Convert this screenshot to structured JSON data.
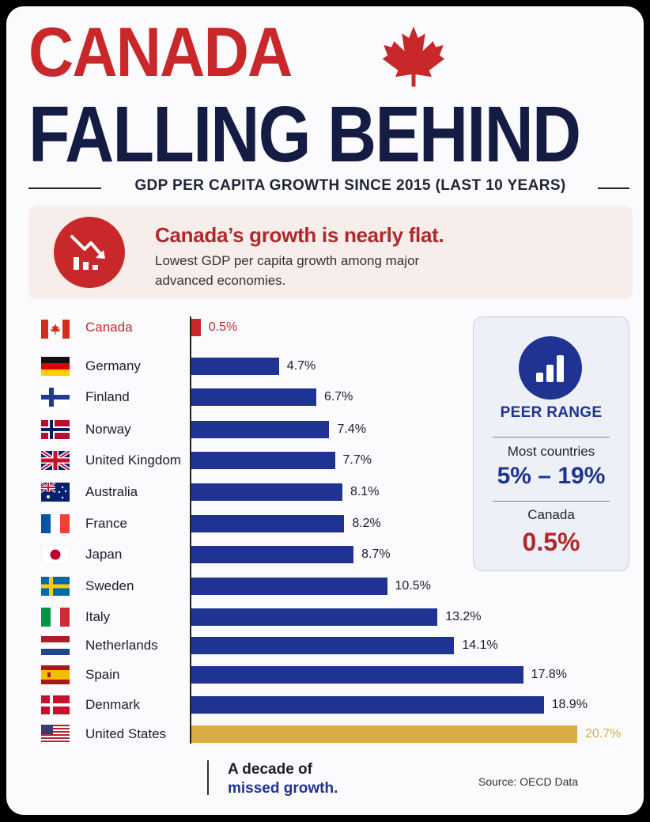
{
  "header": {
    "title_line1": "CANADA",
    "title_line2": "FALLING BEHIND",
    "subtitle": "GDP PER CAPITA GROWTH SINCE 2015 (LAST 10 YEARS)"
  },
  "callout": {
    "headline": "Canada’s growth is nearly flat.",
    "text": "Lowest GDP per capita growth among major advanced economies.",
    "icon": "declining-bar-chart-icon"
  },
  "peer_range": {
    "title": "PEER RANGE",
    "most_label": "Most countries",
    "range_value": "5% – 19%",
    "canada_label": "Canada",
    "canada_value": "0.5%",
    "icon": "bar-chart-icon"
  },
  "footer": {
    "line1": "A decade of",
    "line2": "missed growth.",
    "source": "Source: OECD Data"
  },
  "colors": {
    "canada_red": "#c8282a",
    "bar_blue": "#1f3393",
    "us_gold": "#d8ac42",
    "navy_title": "#141c44"
  },
  "chart_data": {
    "type": "bar",
    "orientation": "horizontal",
    "unit": "%",
    "xlim": [
      0,
      20.7
    ],
    "categories": [
      "Canada",
      "Germany",
      "Finland",
      "Norway",
      "United Kingdom",
      "Australia",
      "France",
      "Japan",
      "Sweden",
      "Italy",
      "Netherlands",
      "Spain",
      "Denmark",
      "United States"
    ],
    "values": [
      0.5,
      4.7,
      6.7,
      7.4,
      7.7,
      8.1,
      8.2,
      8.7,
      10.5,
      13.2,
      14.1,
      17.8,
      18.9,
      20.7
    ],
    "labels": [
      "0.5%",
      "4.7%",
      "6.7%",
      "7.4%",
      "7.7%",
      "8.1%",
      "8.2%",
      "8.7%",
      "10.5%",
      "13.2%",
      "14.1%",
      "17.8%",
      "18.9%",
      "20.7%"
    ],
    "flags": [
      "canada-flag",
      "germany-flag",
      "finland-flag",
      "norway-flag",
      "united-kingdom-flag",
      "australia-flag",
      "france-flag",
      "japan-flag",
      "sweden-flag",
      "italy-flag",
      "netherlands-flag",
      "spain-flag",
      "denmark-flag",
      "united-states-flag"
    ],
    "bar_colors": [
      "#c8282a",
      "#1f3393",
      "#1f3393",
      "#1f3393",
      "#1f3393",
      "#1f3393",
      "#1f3393",
      "#1f3393",
      "#1f3393",
      "#1f3393",
      "#1f3393",
      "#1f3393",
      "#1f3393",
      "#d8ac42"
    ],
    "label_colors": [
      "#c8282a",
      "#1c1c2a",
      "#1c1c2a",
      "#1c1c2a",
      "#1c1c2a",
      "#1c1c2a",
      "#1c1c2a",
      "#1c1c2a",
      "#1c1c2a",
      "#1c1c2a",
      "#1c1c2a",
      "#1c1c2a",
      "#1c1c2a",
      "#d8ac42"
    ],
    "highlight": "Canada",
    "grid": false,
    "legend": "none"
  }
}
